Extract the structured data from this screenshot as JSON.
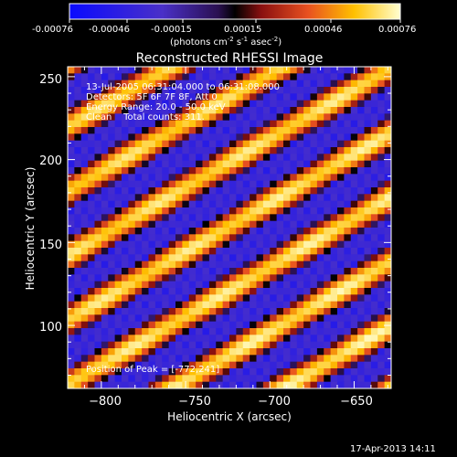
{
  "colorbar": {
    "ticks": [
      "-0.00076",
      "-0.00046",
      "-0.00015",
      "0.00015",
      "0.00046",
      "0.00076"
    ],
    "units_base": "(photons cm",
    "units_exp1": "-2",
    "units_mid": " s",
    "units_exp2": "-1",
    "units_mid2": " asec",
    "units_exp3": "-2",
    "units_end": ")"
  },
  "chart_data": {
    "type": "heatmap",
    "title": "Reconstructed RHESSI Image",
    "xlabel": "Heliocentric X (arcsec)",
    "ylabel": "Heliocentric Y (arcsec)",
    "xlim": [
      -820,
      -628
    ],
    "ylim": [
      62,
      256
    ],
    "xticks": [
      -800,
      -750,
      -700,
      -650
    ],
    "xtick_labels": [
      "−800",
      "−750",
      "−700",
      "−650"
    ],
    "yticks": [
      100,
      150,
      200,
      250
    ],
    "ytick_labels": [
      "100",
      "150",
      "200",
      "250"
    ],
    "value_range": [
      -0.00076,
      0.00076
    ],
    "annotations": [
      "13-Jul-2005 06:31:04.000 to 06:31:08.000",
      "Detectors: 5F 6F 7F 8F, Att 0",
      "Energy Range: 20.0 - 50.0 keV",
      "Clean    Total counts: 311."
    ],
    "peak_label": "Position of Peak = [-772,241]",
    "peak": [
      -772,
      241
    ]
  },
  "timestamp": "17-Apr-2013 14:11",
  "colors": {
    "background": "#000000",
    "text": "#ffffff"
  }
}
